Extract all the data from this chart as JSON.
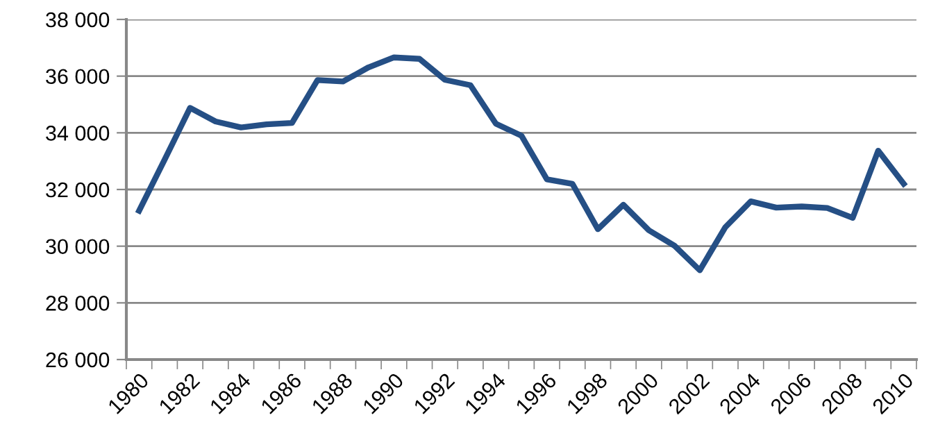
{
  "chart_data": {
    "type": "line",
    "categories": [
      "1980",
      null,
      "1982",
      null,
      "1984",
      null,
      "1986",
      null,
      "1988",
      null,
      "1990",
      null,
      "1992",
      null,
      "1994",
      null,
      "1996",
      null,
      "1998",
      null,
      "2000",
      null,
      "2002",
      null,
      "2004",
      null,
      "2006",
      null,
      "2008",
      null,
      "2010"
    ],
    "series": [
      {
        "color": "#254f85",
        "values": [
          31250,
          33050,
          34880,
          34400,
          34190,
          34300,
          34350,
          35860,
          35810,
          36310,
          36660,
          36610,
          35870,
          35680,
          34320,
          33900,
          32360,
          32200,
          30600,
          31460,
          30560,
          30020,
          29150,
          30670,
          31580,
          31360,
          31400,
          31350,
          31000,
          33370,
          32200
        ]
      }
    ],
    "ylim": [
      26000,
      38000
    ],
    "yticks": [
      {
        "value": 26000,
        "label": "26 000"
      },
      {
        "value": 28000,
        "label": "28 000"
      },
      {
        "value": 30000,
        "label": "30 000"
      },
      {
        "value": 32000,
        "label": "32 000"
      },
      {
        "value": 34000,
        "label": "34 000"
      },
      {
        "value": 36000,
        "label": "36 000"
      },
      {
        "value": 38000,
        "label": "38 000"
      }
    ],
    "grid": "y",
    "line_style": "solid",
    "marker": "none"
  }
}
